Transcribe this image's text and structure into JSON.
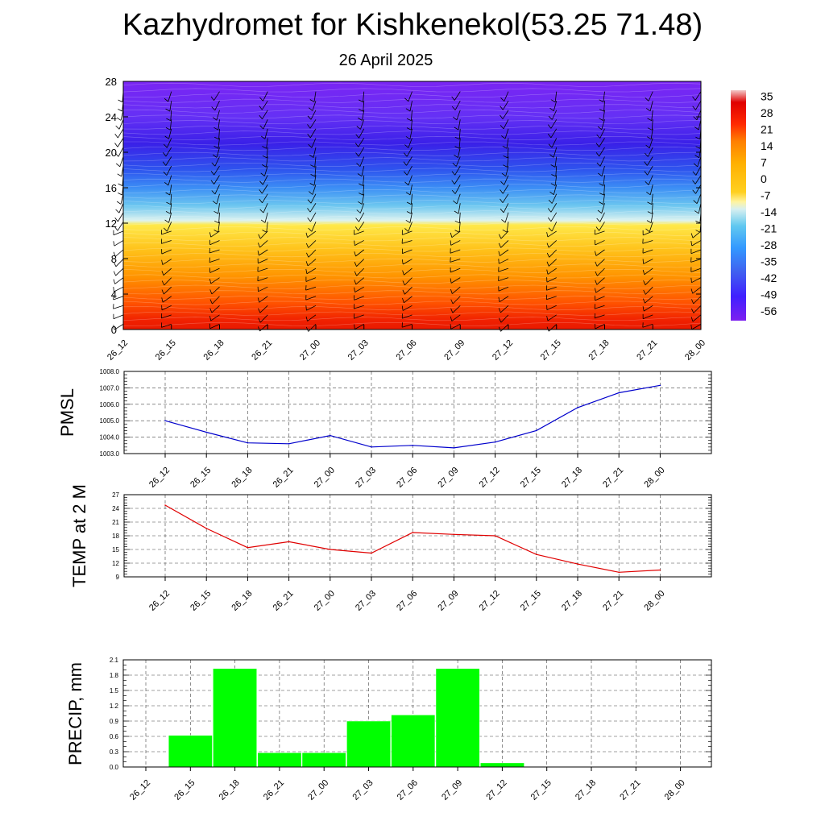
{
  "header": {
    "title": "Kazhydromet for Kishkenekol(53.25 71.48)",
    "subtitle": "26 April 2025"
  },
  "chart_data": [
    {
      "id": "cross-section",
      "type": "heatmap",
      "title": "",
      "xlabel": "",
      "ylabel": "",
      "x": [
        "26_12",
        "26_15",
        "26_18",
        "26_21",
        "27_00",
        "27_03",
        "27_06",
        "27_09",
        "27_12",
        "27_15",
        "27_18",
        "27_21",
        "28_00"
      ],
      "ylim": [
        0,
        28
      ],
      "yticks": [
        0,
        4,
        8,
        12,
        16,
        20,
        24,
        28
      ],
      "colorbar": {
        "labels": [
          "35",
          "28",
          "21",
          "14",
          "7",
          "0",
          "-7",
          "-14",
          "-21",
          "-28",
          "-35",
          "-42",
          "-49",
          "-56"
        ],
        "stops": [
          {
            "value": 35,
            "color": "#f2c8c8"
          },
          {
            "value": 30,
            "color": "#e00000"
          },
          {
            "value": 21,
            "color": "#ff2a00"
          },
          {
            "value": 14,
            "color": "#ff7f00"
          },
          {
            "value": 5,
            "color": "#ffb000"
          },
          {
            "value": -7,
            "color": "#ffd020"
          },
          {
            "value": -11,
            "color": "#fff4a0"
          },
          {
            "value": -14,
            "color": "#d8f0f0"
          },
          {
            "value": -21,
            "color": "#60c8f0"
          },
          {
            "value": -30,
            "color": "#3399ff"
          },
          {
            "value": -40,
            "color": "#4060f0"
          },
          {
            "value": -50,
            "color": "#4020ff"
          },
          {
            "value": -60,
            "color": "#7d20f0"
          }
        ]
      },
      "layers": [
        {
          "height": 28,
          "color": "#7a25f3"
        },
        {
          "height": 24,
          "color": "#6530f5"
        },
        {
          "height": 21,
          "color": "#3a20e8"
        },
        {
          "height": 18,
          "color": "#2e55ee"
        },
        {
          "height": 16,
          "color": "#3c8ef5"
        },
        {
          "height": 14,
          "color": "#6cc6f0"
        },
        {
          "height": 12.3,
          "color": "#ddf3f0"
        },
        {
          "height": 11.8,
          "color": "#ffe94a"
        },
        {
          "height": 9,
          "color": "#ffc21a"
        },
        {
          "height": 6,
          "color": "#ff9400"
        },
        {
          "height": 3,
          "color": "#ff5200"
        },
        {
          "height": 1,
          "color": "#f02000"
        },
        {
          "height": 0,
          "color": "#e81a00"
        }
      ]
    },
    {
      "id": "pmsl",
      "type": "line",
      "ylabel": "PMSL",
      "x": [
        "26_12",
        "26_15",
        "26_18",
        "26_21",
        "27_00",
        "27_03",
        "27_06",
        "27_09",
        "27_12",
        "27_15",
        "27_18",
        "27_21",
        "28_00"
      ],
      "series": [
        {
          "values": [
            1005.0,
            1004.3,
            1003.65,
            1003.6,
            1004.1,
            1003.4,
            1003.5,
            1003.35,
            1003.7,
            1004.4,
            1005.8,
            1006.7,
            1007.15
          ],
          "color": "#0000cc"
        }
      ],
      "ylim": [
        1003.0,
        1008.0
      ],
      "yticks": [
        "1003.0",
        "1004.0",
        "1005.0",
        "1006.0",
        "1007.0",
        "1008.0"
      ]
    },
    {
      "id": "temp",
      "type": "line",
      "ylabel": "TEMP at 2 M",
      "x": [
        "26_12",
        "26_15",
        "26_18",
        "26_21",
        "27_00",
        "27_03",
        "27_06",
        "27_09",
        "27_12",
        "27_15",
        "27_18",
        "27_21",
        "28_00"
      ],
      "series": [
        {
          "values": [
            24.7,
            19.6,
            15.4,
            16.7,
            15.0,
            14.2,
            18.7,
            18.3,
            18.0,
            13.9,
            11.8,
            10.0,
            10.5
          ],
          "color": "#e00000"
        }
      ],
      "ylim": [
        9,
        27
      ],
      "yticks": [
        "9",
        "12",
        "15",
        "18",
        "21",
        "24",
        "27"
      ]
    },
    {
      "id": "precip",
      "type": "bar",
      "ylabel": "PRECIP, mm",
      "categories": [
        "26_12",
        "26_15",
        "26_18",
        "26_21",
        "27_00",
        "27_03",
        "27_06",
        "27_09",
        "27_12",
        "27_15",
        "27_18",
        "27_21",
        "28_00"
      ],
      "values": [
        0,
        0.62,
        1.93,
        0.28,
        0.28,
        0.9,
        1.02,
        1.93,
        0.08,
        0,
        0,
        0,
        0
      ],
      "color": "#00ff00",
      "ylim": [
        0,
        2.1
      ],
      "yticks": [
        "0.0",
        "0.3",
        "0.6",
        "0.9",
        "1.2",
        "1.5",
        "1.8",
        "2.1"
      ]
    }
  ]
}
